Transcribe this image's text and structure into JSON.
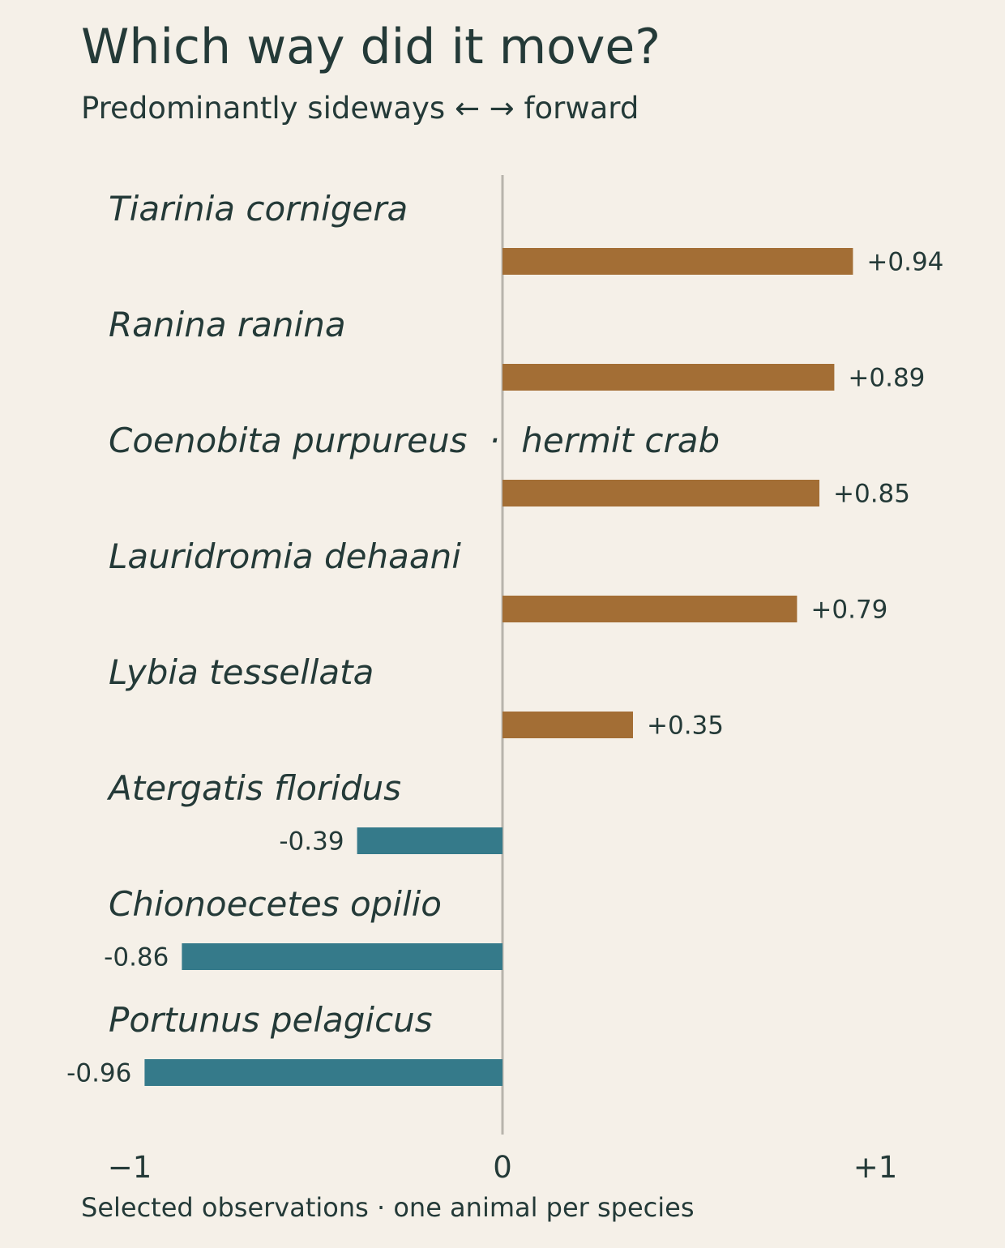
{
  "title": "Which way did it move?",
  "subtitle": "Predominantly sideways ← → forward",
  "footnote": "Selected observations · one animal per species",
  "colors": {
    "background": "#f5f0e8",
    "text": "#243a38",
    "forward": "#a36e35",
    "sideways": "#357a8a",
    "axis": "#b8b4ac"
  },
  "chart_data": {
    "type": "bar",
    "orientation": "horizontal",
    "categories": [
      "Tiarinia cornigera",
      "Ranina ranina",
      "Coenobita purpureus  ·  hermit crab",
      "Lauridromia dehaani",
      "Lybia tessellata",
      "Atergatis floridus",
      "Chionoecetes opilio",
      "Portunus pelagicus"
    ],
    "values": [
      0.94,
      0.89,
      0.85,
      0.79,
      0.35,
      -0.39,
      -0.86,
      -0.96
    ],
    "value_labels": [
      "+0.94",
      "+0.89",
      "+0.85",
      "+0.79",
      "+0.35",
      "-0.39",
      "-0.86",
      "-0.96"
    ],
    "xlim": [
      -1,
      1
    ],
    "xticks": [
      -1,
      0,
      1
    ],
    "xtick_labels": [
      "−1",
      "0",
      "+1"
    ],
    "grid": false,
    "zero_line": true
  }
}
